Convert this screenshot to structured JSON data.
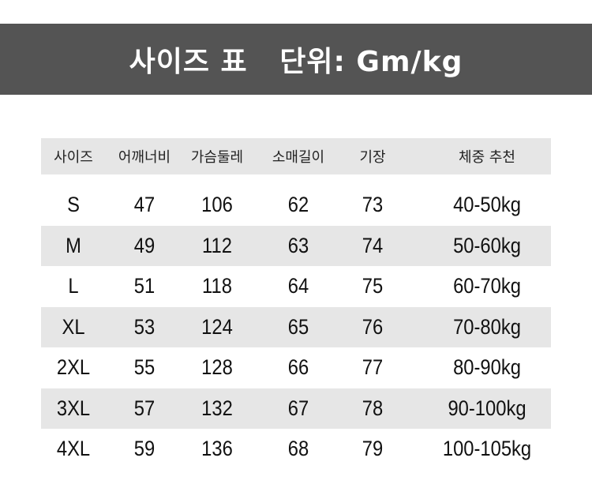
{
  "title": {
    "main": "사이즈 표",
    "unit": "단위: Gm/kg"
  },
  "table": {
    "columns": [
      "사이즈",
      "어깨너비",
      "가슴둘레",
      "소매길이",
      "기장",
      "체중 추천"
    ],
    "rows": [
      [
        "S",
        "47",
        "106",
        "62",
        "73",
        "40-50kg"
      ],
      [
        "M",
        "49",
        "112",
        "63",
        "74",
        "50-60kg"
      ],
      [
        "L",
        "51",
        "118",
        "64",
        "75",
        "60-70kg"
      ],
      [
        "XL",
        "53",
        "124",
        "65",
        "76",
        "70-80kg"
      ],
      [
        "2XL",
        "55",
        "128",
        "66",
        "77",
        "80-90kg"
      ],
      [
        "3XL",
        "57",
        "132",
        "67",
        "78",
        "90-100kg"
      ],
      [
        "4XL",
        "59",
        "136",
        "68",
        "79",
        "100-105kg"
      ]
    ]
  },
  "colors": {
    "banner": "#545454",
    "row_shade": "#e6e6e6"
  }
}
